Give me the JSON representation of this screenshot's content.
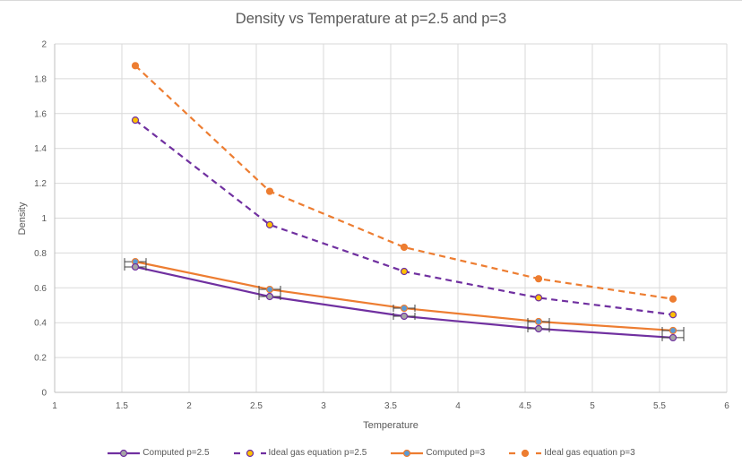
{
  "chart_data": {
    "type": "line",
    "title": "Density vs Temperature at p=2.5 and p=3",
    "xlabel": "Temperature",
    "ylabel": "Density",
    "xlim": [
      1,
      6
    ],
    "ylim": [
      0,
      2
    ],
    "xticks": [
      "1",
      "1.5",
      "2",
      "2.5",
      "3",
      "3.5",
      "4",
      "4.5",
      "5",
      "5.5",
      "6"
    ],
    "yticks": [
      "0",
      "0.2",
      "0.4",
      "0.6",
      "0.8",
      "1",
      "1.2",
      "1.4",
      "1.6",
      "1.8",
      "2"
    ],
    "xtick_values": [
      1,
      1.5,
      2,
      2.5,
      3,
      3.5,
      4,
      4.5,
      5,
      5.5,
      6
    ],
    "ytick_values": [
      0,
      0.2,
      0.4,
      0.6,
      0.8,
      1,
      1.2,
      1.4,
      1.6,
      1.8,
      2
    ],
    "grid": true,
    "legend_position": "bottom",
    "x": [
      1.6,
      2.6,
      3.6,
      4.6,
      5.6
    ],
    "series": [
      {
        "name": "Computed p=2.5",
        "values": [
          0.72,
          0.55,
          0.437,
          0.365,
          0.314
        ],
        "line_color": "#7030a0",
        "marker_fill": "#a5a5a5",
        "marker_stroke": "#7030a0",
        "dashed": false,
        "x_error": 0.08
      },
      {
        "name": "Ideal gas equation p=2.5",
        "values": [
          1.5625,
          0.962,
          0.694,
          0.543,
          0.446
        ],
        "line_color": "#7030a0",
        "marker_fill": "#ffc000",
        "marker_stroke": "#7030a0",
        "dashed": true
      },
      {
        "name": "Computed p=3",
        "values": [
          0.75,
          0.591,
          0.483,
          0.406,
          0.355
        ],
        "line_color": "#ed7d31",
        "marker_fill": "#5b9bd5",
        "marker_stroke": "#ed7d31",
        "dashed": false,
        "x_error": 0.08
      },
      {
        "name": "Ideal gas equation p=3",
        "values": [
          1.875,
          1.154,
          0.833,
          0.652,
          0.536
        ],
        "line_color": "#ed7d31",
        "marker_fill": "#ed7d31",
        "marker_stroke": "#ed7d31",
        "dashed": true
      }
    ]
  }
}
